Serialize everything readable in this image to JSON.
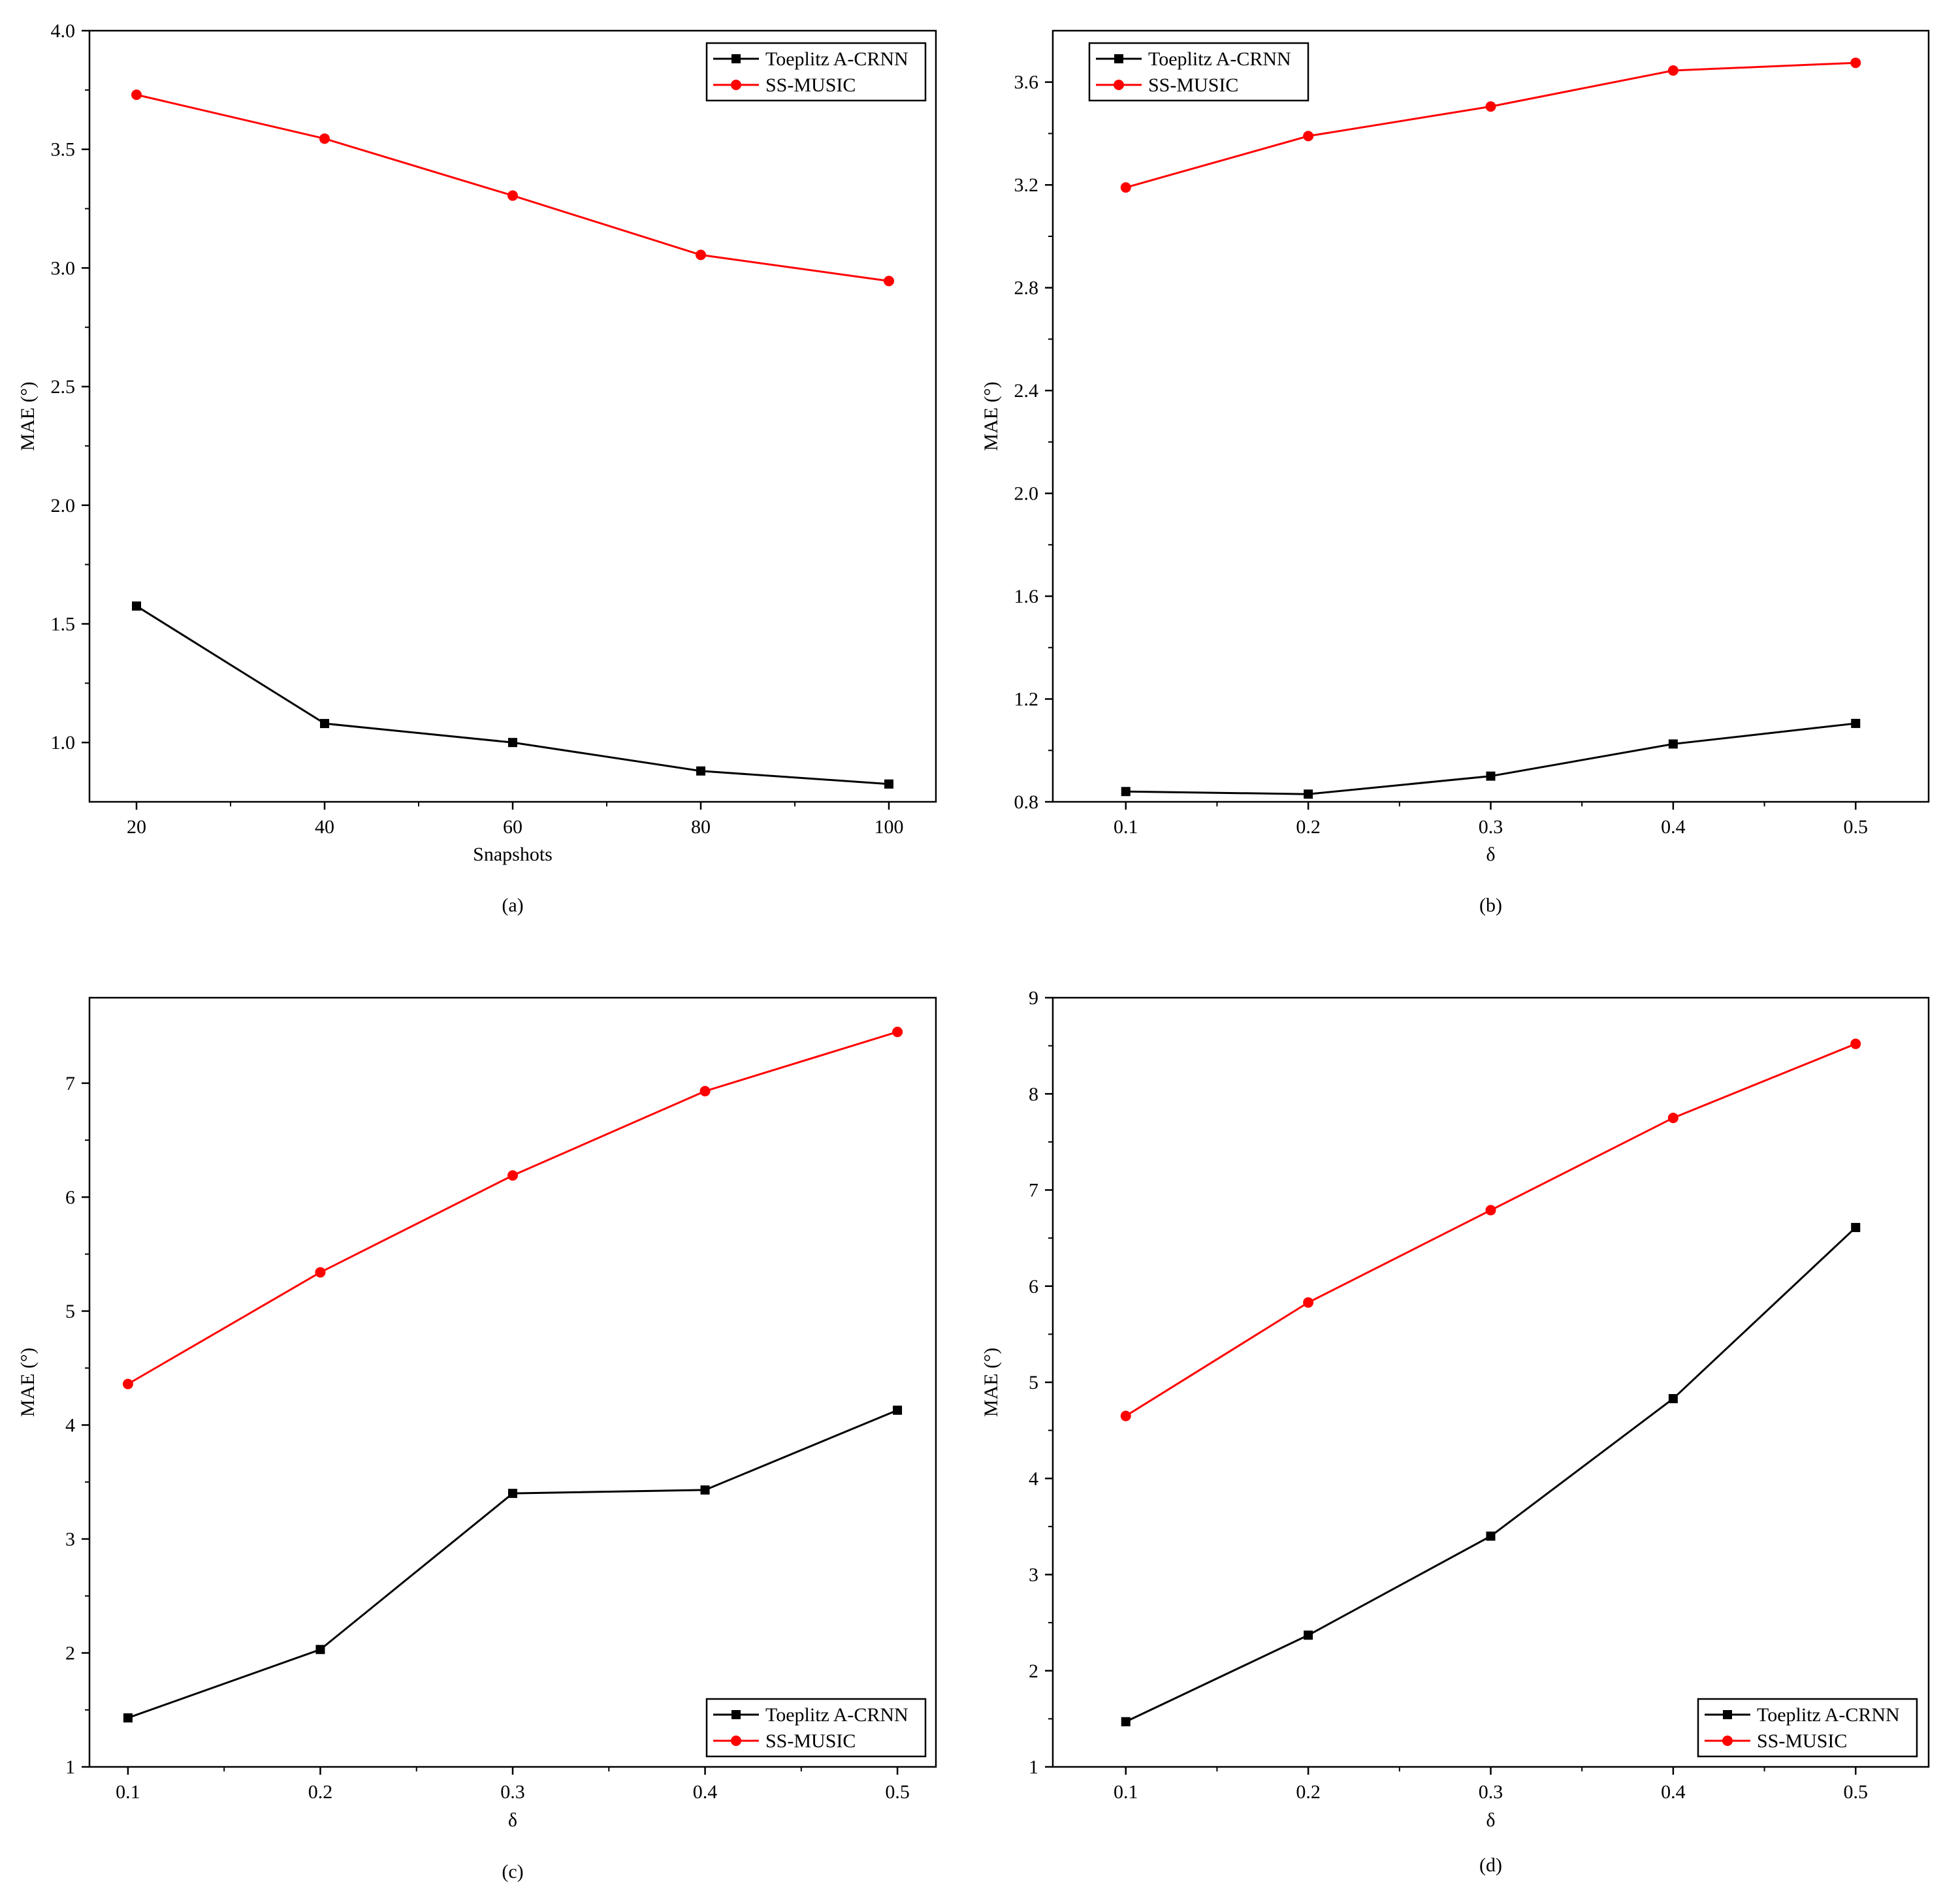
{
  "chart_data": [
    {
      "type": "line",
      "caption": "(a)",
      "xlabel": "Snapshots",
      "ylabel": "MAE (°)",
      "x": [
        20,
        40,
        60,
        80,
        100
      ],
      "xlim": [
        15,
        105
      ],
      "xticks": [
        20,
        40,
        60,
        80,
        100
      ],
      "ylim": [
        0.75,
        4.0
      ],
      "yticks": [
        "1.0",
        "1.5",
        "2.0",
        "2.5",
        "3.0",
        "3.5",
        "4.0"
      ],
      "legend_position": "top-right",
      "series": [
        {
          "name": "Toeplitz A-CRNN",
          "color": "#000000",
          "marker": "square",
          "values": [
            1.575,
            1.08,
            1.0,
            0.88,
            0.825
          ]
        },
        {
          "name": "SS-MUSIC",
          "color": "#ff0000",
          "marker": "circle",
          "values": [
            3.73,
            3.545,
            3.305,
            3.055,
            2.945
          ]
        }
      ]
    },
    {
      "type": "line",
      "caption": "(b)",
      "xlabel": "δ",
      "ylabel": "MAE (°)",
      "x": [
        0.1,
        0.2,
        0.3,
        0.4,
        0.5
      ],
      "xlim": [
        0.06,
        0.54
      ],
      "xticks": [
        "0.1",
        "0.2",
        "0.3",
        "0.4",
        "0.5"
      ],
      "ylim": [
        0.8,
        3.8
      ],
      "yticks": [
        "0.8",
        "1.2",
        "1.6",
        "2.0",
        "2.4",
        "2.8",
        "3.2",
        "3.6"
      ],
      "legend_position": "top-left",
      "series": [
        {
          "name": "Toeplitz A-CRNN",
          "color": "#000000",
          "marker": "square",
          "values": [
            0.84,
            0.83,
            0.9,
            1.025,
            1.105
          ]
        },
        {
          "name": "SS-MUSIC",
          "color": "#ff0000",
          "marker": "circle",
          "values": [
            3.19,
            3.39,
            3.505,
            3.645,
            3.675
          ]
        }
      ]
    },
    {
      "type": "line",
      "caption": "(c)",
      "xlabel": "δ",
      "ylabel": "MAE (°)",
      "x": [
        0.1,
        0.2,
        0.3,
        0.4,
        0.5
      ],
      "xlim": [
        0.08,
        0.52
      ],
      "xticks": [
        "0.1",
        "0.2",
        "0.3",
        "0.4",
        "0.5"
      ],
      "ylim": [
        1,
        7.75
      ],
      "yticks": [
        "1",
        "2",
        "3",
        "4",
        "5",
        "6",
        "7"
      ],
      "legend_position": "bottom-right",
      "series": [
        {
          "name": "Toeplitz A-CRNN",
          "color": "#000000",
          "marker": "square",
          "values": [
            1.43,
            2.03,
            3.4,
            3.43,
            4.13
          ]
        },
        {
          "name": "SS-MUSIC",
          "color": "#ff0000",
          "marker": "circle",
          "values": [
            4.36,
            5.34,
            6.19,
            6.93,
            7.45
          ]
        }
      ]
    },
    {
      "type": "line",
      "caption": "(d)",
      "xlabel": "δ",
      "ylabel": "MAE (°)",
      "x": [
        0.1,
        0.2,
        0.3,
        0.4,
        0.5
      ],
      "xlim": [
        0.06,
        0.54
      ],
      "xticks": [
        "0.1",
        "0.2",
        "0.3",
        "0.4",
        "0.5"
      ],
      "ylim": [
        1,
        9
      ],
      "yticks": [
        "1",
        "2",
        "3",
        "4",
        "5",
        "6",
        "7",
        "8",
        "9"
      ],
      "legend_position": "bottom-right",
      "series": [
        {
          "name": "Toeplitz A-CRNN",
          "color": "#000000",
          "marker": "square",
          "values": [
            1.47,
            2.37,
            3.4,
            4.83,
            6.61
          ]
        },
        {
          "name": "SS-MUSIC",
          "color": "#ff0000",
          "marker": "circle",
          "values": [
            4.65,
            5.83,
            6.79,
            7.75,
            8.52
          ]
        }
      ]
    }
  ]
}
